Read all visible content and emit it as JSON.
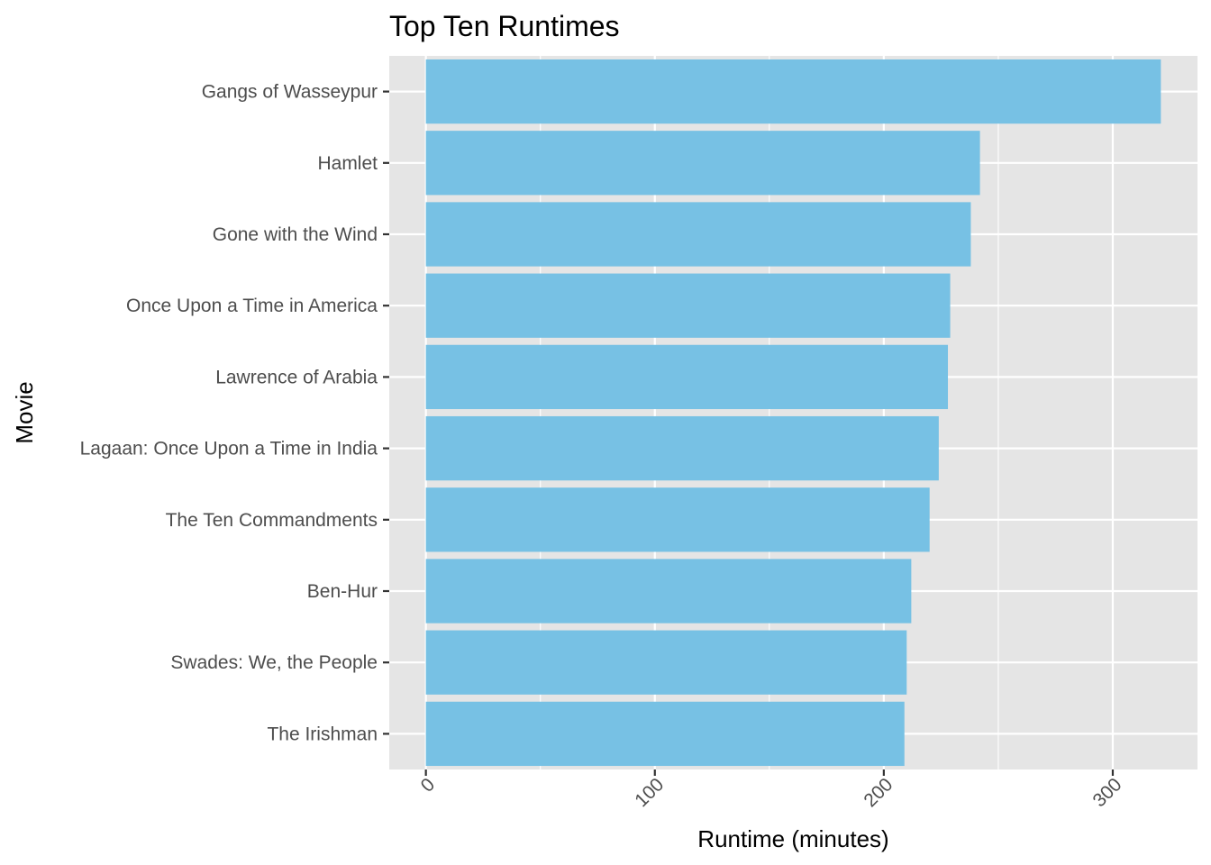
{
  "chart_data": {
    "type": "bar",
    "orientation": "horizontal",
    "title": "Top Ten Runtimes",
    "xlabel": "Runtime (minutes)",
    "ylabel": "Movie",
    "categories": [
      "Gangs of Wasseypur",
      "Hamlet",
      "Gone with the Wind",
      "Once Upon a Time in America",
      "Lawrence of Arabia",
      "Lagaan: Once Upon a Time in India",
      "The Ten Commandments",
      "Ben-Hur",
      "Swades: We, the People",
      "The Irishman"
    ],
    "values": [
      321,
      242,
      238,
      229,
      228,
      224,
      220,
      212,
      210,
      209
    ],
    "xlim": [
      -16,
      337
    ],
    "x_ticks": [
      0,
      100,
      200,
      300
    ],
    "x_tick_labels": [
      "0",
      "100",
      "200",
      "300"
    ],
    "x_tick_label_rotation": 45,
    "grid": true,
    "bar_color": "#77c1e4",
    "panel_background": "#e5e5e5",
    "grid_color": "#ffffff",
    "legend": "none"
  }
}
